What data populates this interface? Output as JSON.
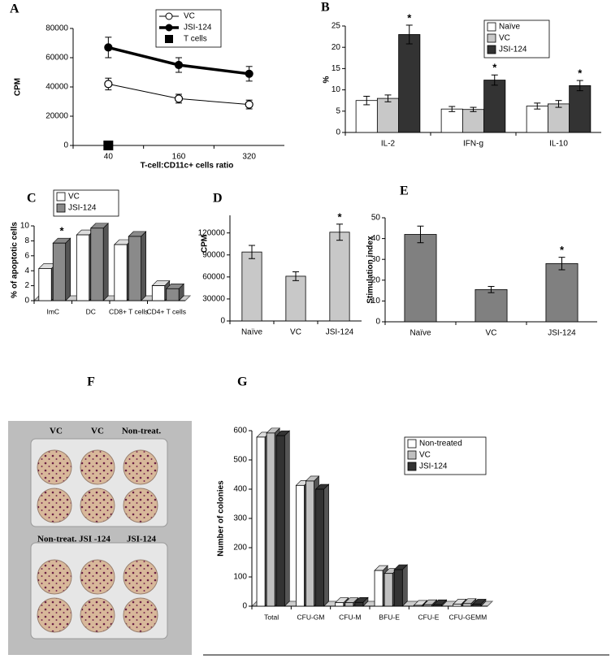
{
  "chart_data": [
    {
      "type": "line",
      "title": "A",
      "x_label": "T-cell:CD11c+ cells ratio",
      "y_label": "CPM",
      "categories": [
        "40",
        "160",
        "320"
      ],
      "ylim": [
        0,
        80000
      ],
      "yticks": [
        0,
        20000,
        40000,
        60000,
        80000
      ],
      "series": [
        {
          "name": "VC",
          "color": "#000",
          "marker": "circle-open",
          "line_width": 1,
          "values": [
            42000,
            32000,
            28000
          ],
          "errors": [
            4000,
            3000,
            3000
          ]
        },
        {
          "name": "JSI-124",
          "color": "#000",
          "marker": "circle",
          "line_width": 3.5,
          "values": [
            67000,
            55000,
            49000
          ],
          "errors": [
            7000,
            5000,
            5000
          ]
        },
        {
          "name": "T cells",
          "color": "#000",
          "marker": "square",
          "line_width": 1,
          "values": [
            0,
            null,
            null
          ]
        }
      ]
    },
    {
      "type": "bar",
      "title": "B",
      "y_label": "%",
      "categories": [
        "IL-2",
        "IFN-g",
        "IL-10"
      ],
      "ylim": [
        0,
        25
      ],
      "yticks": [
        0,
        5,
        10,
        15,
        20,
        25
      ],
      "series": [
        {
          "name": "Naïve",
          "color": "#ffffff",
          "values": [
            7.5,
            5.5,
            6.2
          ],
          "errors": [
            1,
            0.6,
            0.7
          ]
        },
        {
          "name": "VC",
          "color": "#c8c8c8",
          "values": [
            8,
            5.4,
            6.7
          ],
          "errors": [
            0.8,
            0.5,
            0.8
          ]
        },
        {
          "name": "JSI-124",
          "color": "#333333",
          "values": [
            23,
            12.3,
            11
          ],
          "errors": [
            2.2,
            1.2,
            1.2
          ],
          "labels": [
            "*",
            "*",
            "*"
          ]
        }
      ]
    },
    {
      "type": "bar",
      "three_d": true,
      "title": "C",
      "y_label": "% of apoptotic cells",
      "categories": [
        "ImC",
        "DC",
        "CD8+ T cells",
        "CD4+ T cells"
      ],
      "ylim": [
        0,
        10
      ],
      "yticks": [
        0,
        2,
        4,
        6,
        8,
        10
      ],
      "series": [
        {
          "name": "VC",
          "color": "#ffffff",
          "values": [
            4.3,
            8.8,
            7.5,
            2
          ]
        },
        {
          "name": "JSI-124",
          "color": "#8a8a8a",
          "values": [
            7.7,
            9.7,
            8.6,
            1.6
          ],
          "labels": [
            "*",
            null,
            null,
            null
          ]
        }
      ]
    },
    {
      "type": "bar",
      "title": "D",
      "y_label": "CPM",
      "categories": [
        "Naïve",
        "VC",
        "JSI-124"
      ],
      "ylim": [
        0,
        144000
      ],
      "yticks": [
        0,
        30000,
        60000,
        90000,
        120000
      ],
      "series": [
        {
          "color": "#c8c8c8",
          "values": [
            94000,
            61000,
            121000
          ],
          "errors": [
            9000,
            6000,
            11000
          ],
          "labels": [
            null,
            null,
            "*"
          ]
        }
      ]
    },
    {
      "type": "bar",
      "title": "E",
      "y_label": "Stimulation index",
      "categories": [
        "Naïve",
        "VC",
        "JSI-124"
      ],
      "ylim": [
        0,
        50
      ],
      "yticks": [
        0,
        10,
        20,
        30,
        40,
        50
      ],
      "series": [
        {
          "color": "#808080",
          "values": [
            42,
            15.5,
            28
          ],
          "errors": [
            4,
            1.5,
            3
          ],
          "labels": [
            null,
            null,
            "*"
          ]
        }
      ]
    },
    {
      "type": "bar",
      "three_d": true,
      "title": "G",
      "y_label": "Number of colonies",
      "categories": [
        "Total",
        "CFU-GM",
        "CFU-M",
        "BFU-E",
        "CFU-E",
        "CFU-GEMM"
      ],
      "ylim": [
        0,
        600
      ],
      "yticks": [
        0,
        100,
        200,
        300,
        400,
        500,
        600
      ],
      "series": [
        {
          "name": "Non-treated",
          "color": "#ffffff",
          "values": [
            578,
            413,
            12,
            122,
            3,
            7
          ]
        },
        {
          "name": "VC",
          "color": "#c0c0c0",
          "values": [
            592,
            428,
            12,
            112,
            5,
            9
          ]
        },
        {
          "name": "JSI-124",
          "color": "#333333",
          "values": [
            583,
            400,
            13,
            125,
            5,
            7
          ]
        }
      ]
    }
  ],
  "photo": {
    "title": "F",
    "labels": [
      "VC",
      "VC",
      "Non-treat.",
      "Non-treat. JSI -124",
      "JSI-124"
    ]
  }
}
